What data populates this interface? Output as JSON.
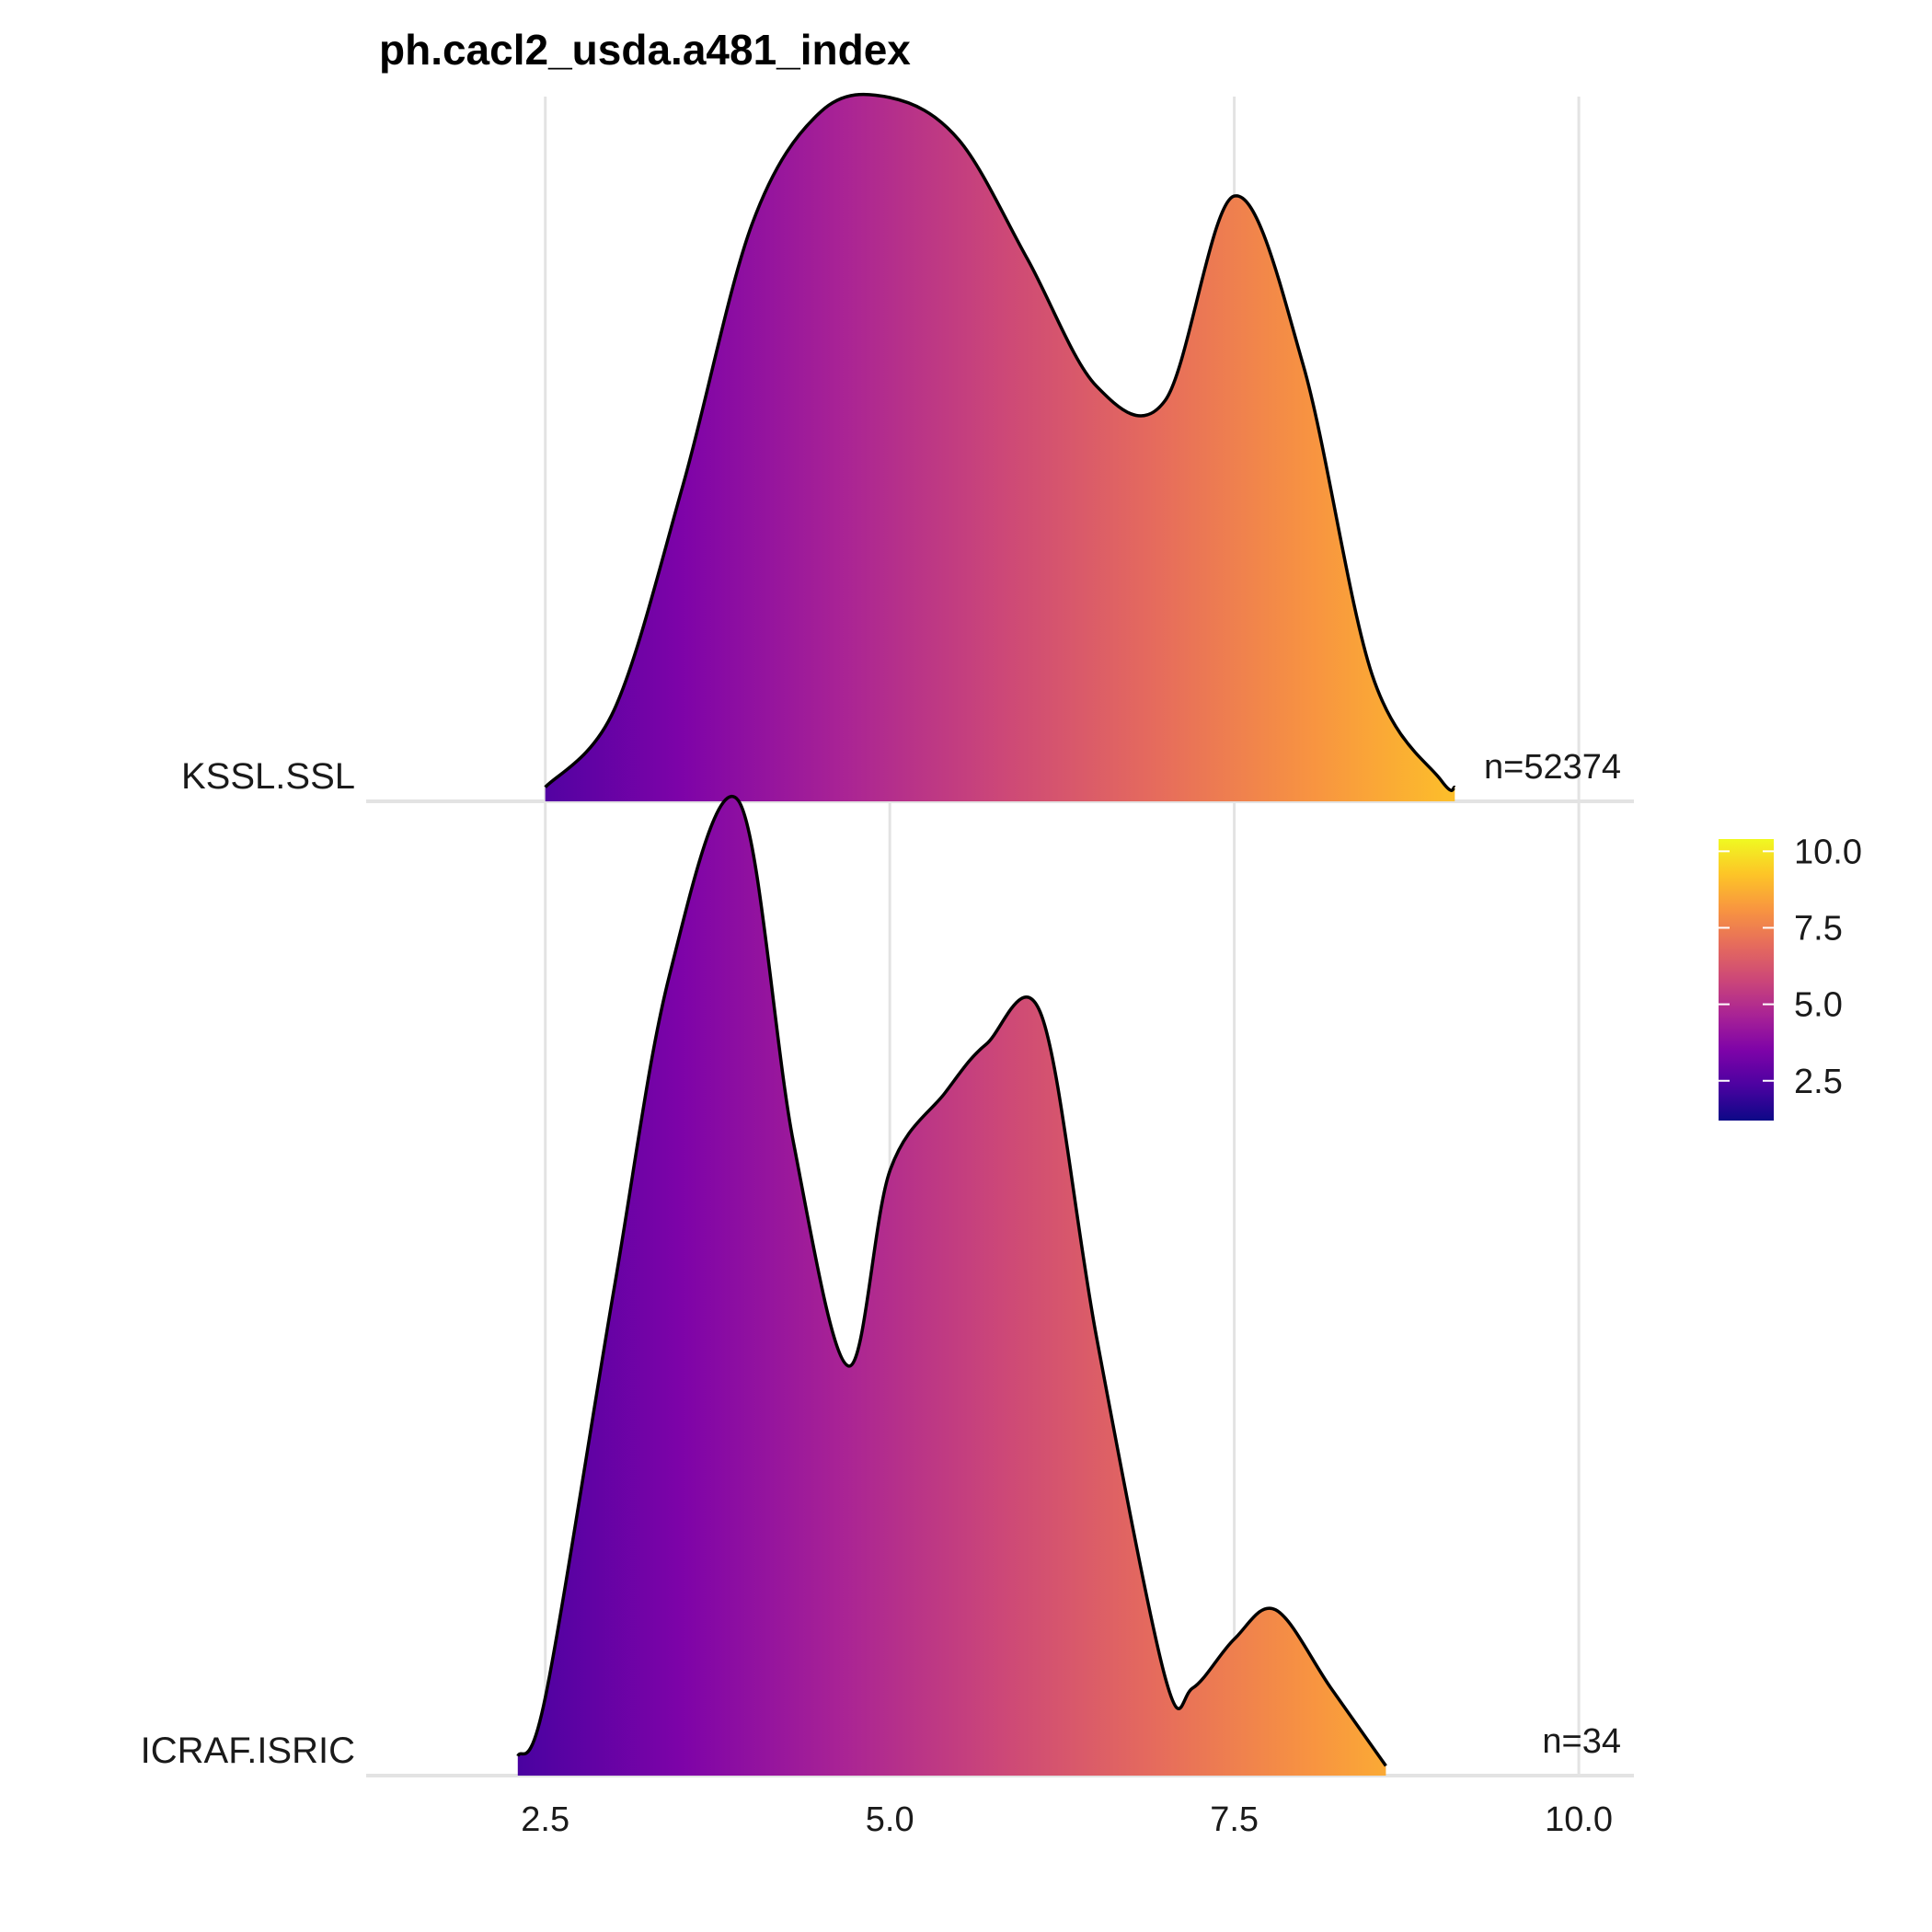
{
  "chart_data": {
    "type": "ridgeline-density",
    "title": "ph.cacl2_usda.a481_index",
    "xlabel": "",
    "ylabel": "",
    "xlim": [
      1.2,
      10.4
    ],
    "x_ticks": [
      2.5,
      5.0,
      7.5,
      10.0
    ],
    "x_tick_labels": [
      "2.5",
      "5.0",
      "7.5",
      "10.0"
    ],
    "grid": true,
    "fill": "gradient by x (plasma palette)",
    "series": [
      {
        "name": "KSSL.SSL",
        "n_label": "n=52374",
        "x": [
          2.5,
          3.0,
          3.5,
          4.0,
          4.5,
          5.0,
          5.5,
          6.0,
          6.5,
          7.0,
          7.5,
          8.0,
          8.5,
          9.0,
          9.1
        ],
        "density": [
          0.02,
          0.13,
          0.45,
          0.82,
          0.98,
          1.0,
          0.94,
          0.77,
          0.59,
          0.57,
          0.86,
          0.62,
          0.18,
          0.03,
          0.02
        ]
      },
      {
        "name": "ICRAF.ISRIC",
        "n_label": "n=34",
        "x": [
          2.3,
          2.5,
          3.0,
          3.4,
          3.9,
          4.3,
          4.7,
          5.0,
          5.4,
          5.7,
          6.1,
          6.5,
          7.0,
          7.2,
          7.5,
          7.8,
          8.2,
          8.6
        ],
        "density": [
          0.02,
          0.08,
          0.5,
          0.82,
          1.0,
          0.65,
          0.42,
          0.62,
          0.7,
          0.75,
          0.78,
          0.45,
          0.1,
          0.09,
          0.14,
          0.17,
          0.09,
          0.01
        ]
      }
    ],
    "colorbar": {
      "range": [
        1.2,
        10.4
      ],
      "ticks": [
        2.5,
        5.0,
        7.5,
        10.0
      ],
      "tick_labels": [
        "2.5",
        "5.0",
        "7.5",
        "10.0"
      ],
      "placement": "right"
    }
  }
}
